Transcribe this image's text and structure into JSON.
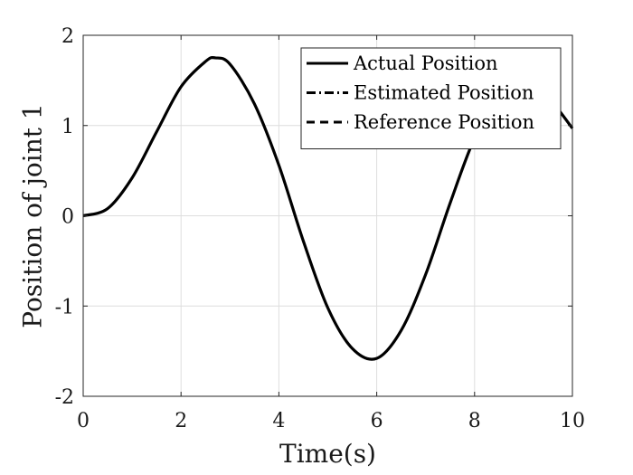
{
  "chart_data": {
    "type": "line",
    "title": "",
    "xlabel": "Time(s)",
    "ylabel": "Position of joint 1",
    "xlim": [
      0,
      10
    ],
    "ylim": [
      -2,
      2
    ],
    "xticks": [
      0,
      2,
      4,
      6,
      8,
      10
    ],
    "yticks": [
      -2,
      -1,
      0,
      1,
      2
    ],
    "grid": true,
    "legend_placement": "top-right",
    "x": [
      0,
      0.5,
      1,
      1.5,
      2,
      2.5,
      2.7,
      3,
      3.5,
      4,
      4.5,
      5,
      5.5,
      6,
      6.5,
      7,
      7.5,
      8,
      8.5,
      9,
      9.5,
      10
    ],
    "series": [
      {
        "name": "Actual Position",
        "line_style": "solid",
        "color": "#000000",
        "values": [
          0,
          0.08,
          0.42,
          0.93,
          1.43,
          1.71,
          1.75,
          1.68,
          1.24,
          0.56,
          -0.28,
          -1.02,
          -1.47,
          -1.58,
          -1.27,
          -0.65,
          0.14,
          0.86,
          1.32,
          1.48,
          1.31,
          0.97
        ]
      },
      {
        "name": "Estimated Position",
        "line_style": "dash-dot",
        "color": "#000000",
        "values": [
          0,
          0.08,
          0.42,
          0.93,
          1.43,
          1.71,
          1.75,
          1.68,
          1.24,
          0.56,
          -0.28,
          -1.02,
          -1.47,
          -1.58,
          -1.27,
          -0.65,
          0.14,
          0.86,
          1.32,
          1.48,
          1.31,
          0.97
        ]
      },
      {
        "name": "Reference Position",
        "line_style": "dashed",
        "color": "#000000",
        "values": [
          0,
          0.08,
          0.42,
          0.93,
          1.43,
          1.71,
          1.75,
          1.68,
          1.24,
          0.56,
          -0.28,
          -1.02,
          -1.47,
          -1.58,
          -1.27,
          -0.65,
          0.14,
          0.86,
          1.32,
          1.48,
          1.31,
          0.97
        ]
      }
    ]
  }
}
